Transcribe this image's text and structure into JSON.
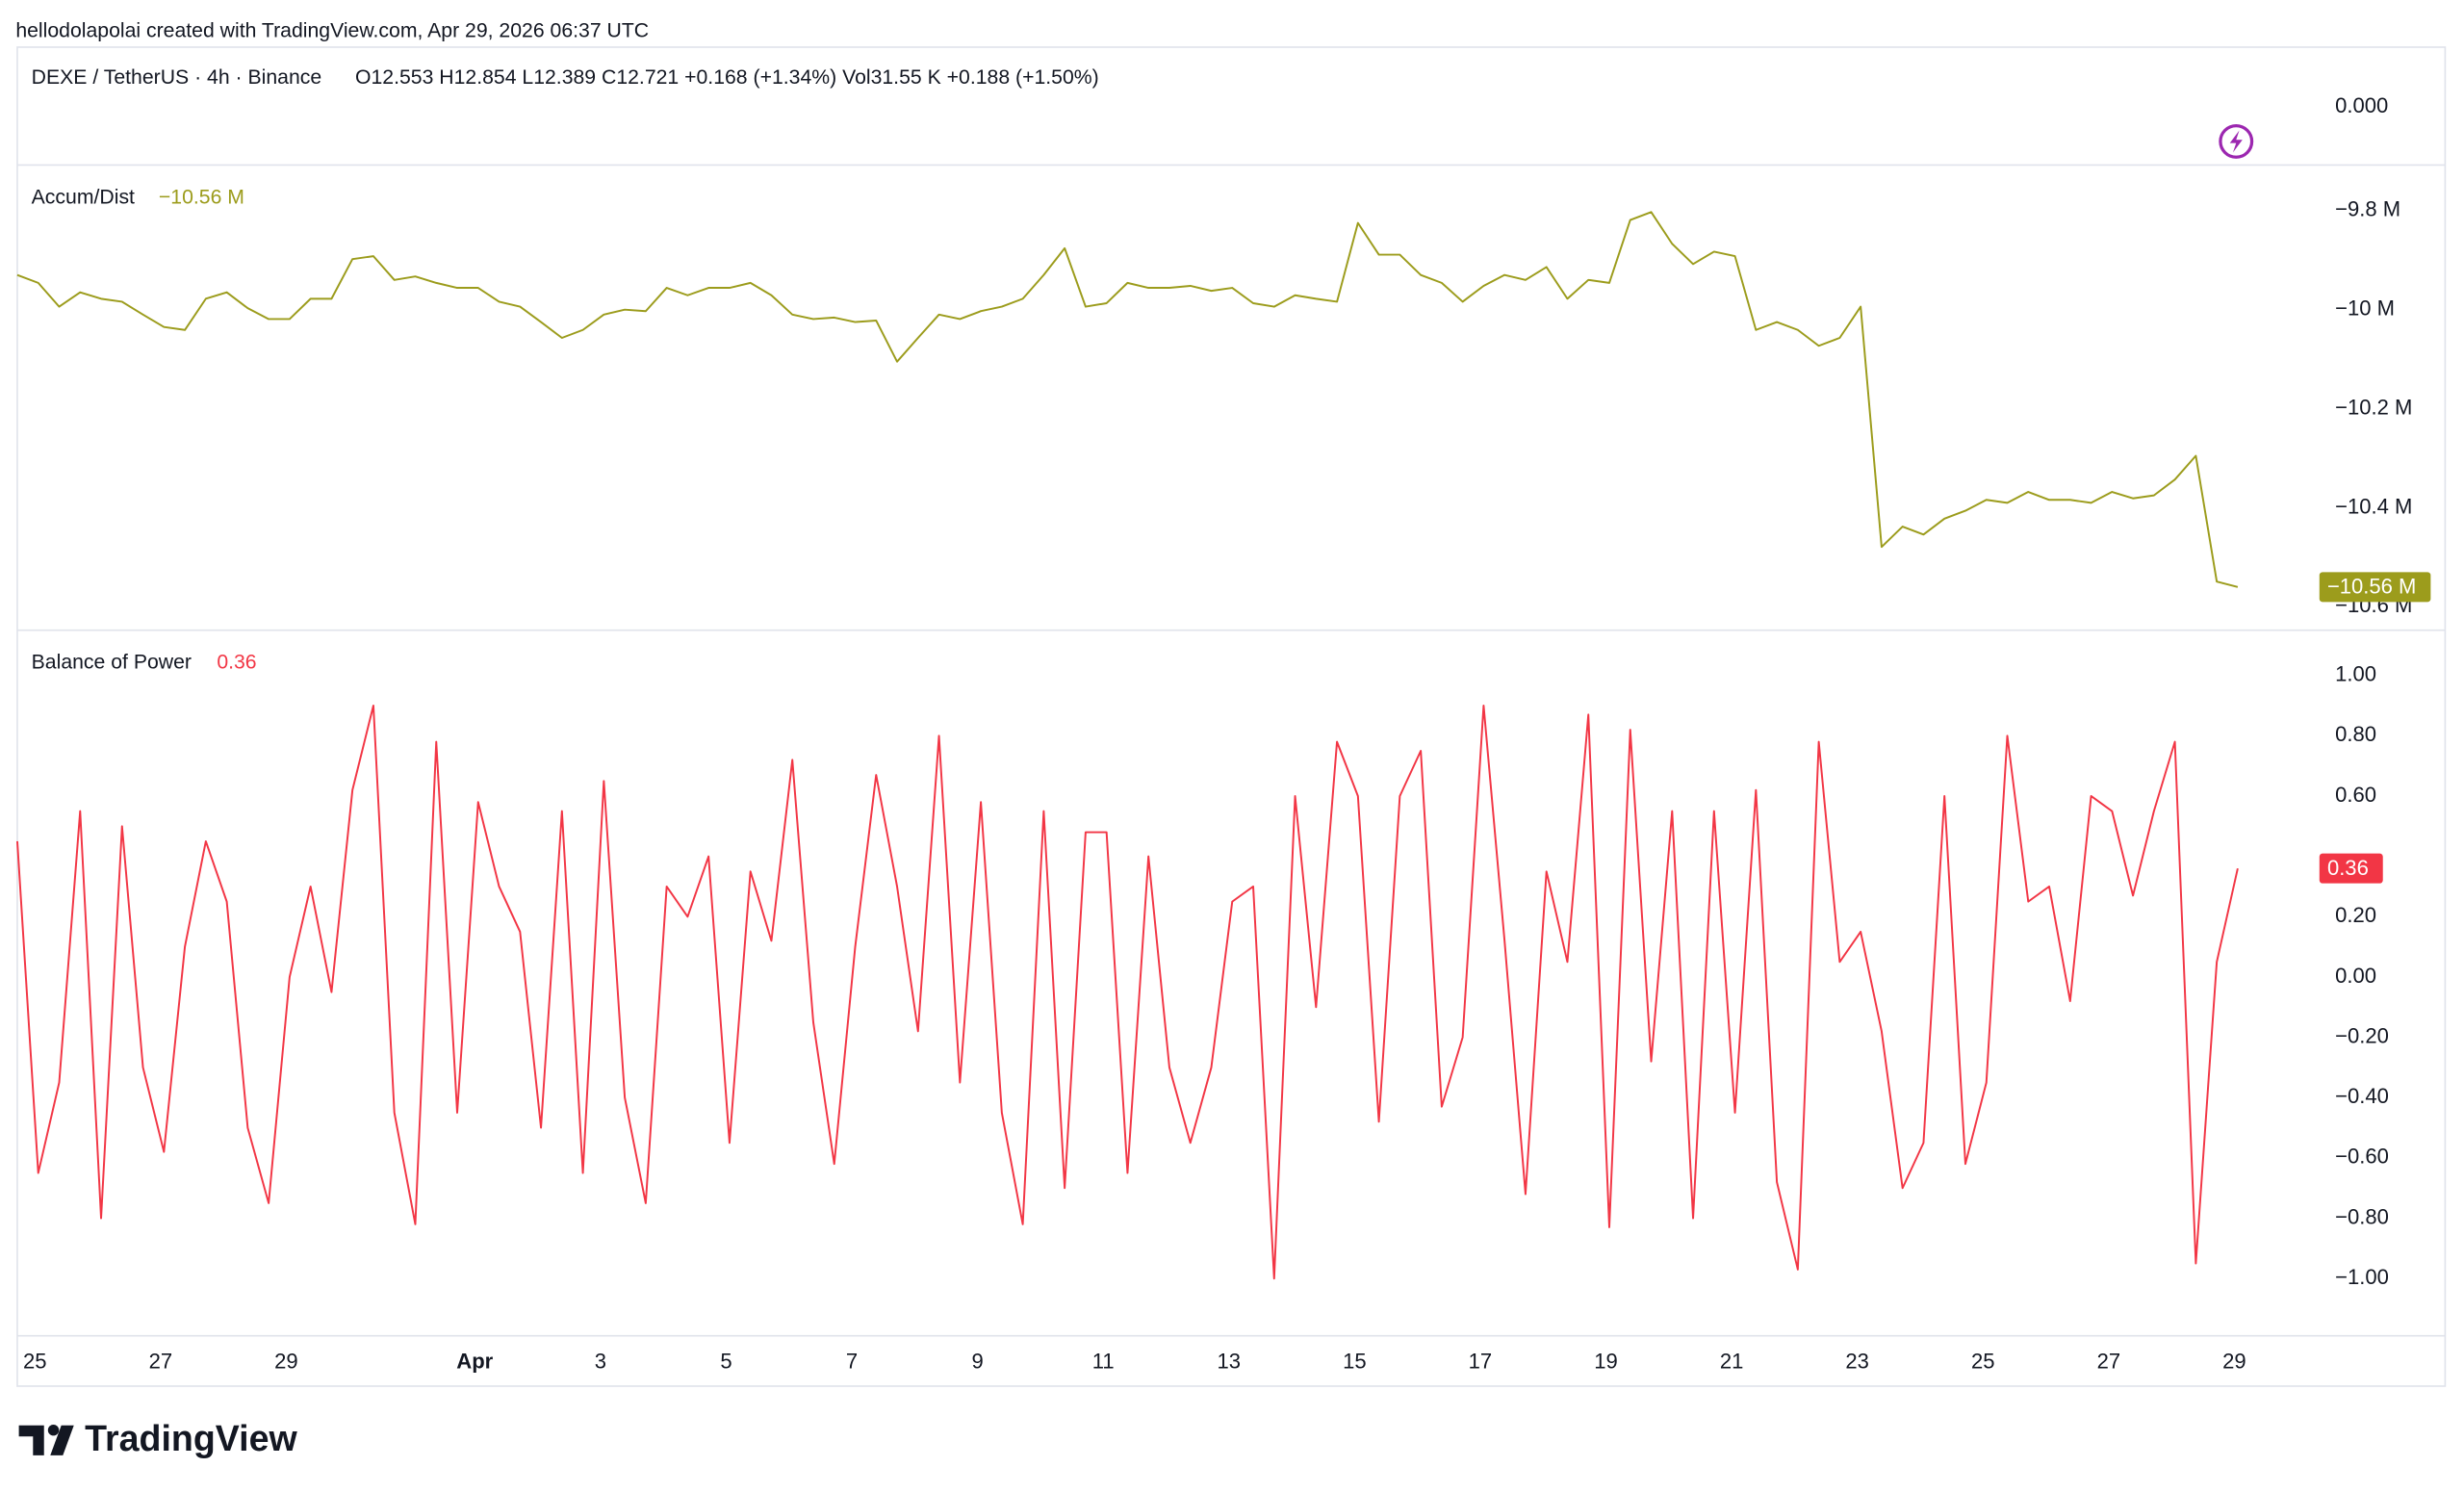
{
  "header": {
    "credit": "hellodolapolai created with TradingView.com, Apr 29, 2026 06:37 UTC",
    "brand": "TradingView"
  },
  "price_pane": {
    "symbol": "DEXE / TetherUS · 4h · Binance",
    "ohlc": "O12.553  H12.854  L12.389  C12.721  +0.168 (+1.34%)  Vol31.55 K  +0.188 (+1.50%)",
    "axis_label": "0.000"
  },
  "chart_data": [
    {
      "type": "line",
      "title": "Accum/Dist",
      "last_label": "−10.56 M",
      "color": "#9c9c1c",
      "xlim": [
        0,
        108.7
      ],
      "ylim": [
        -10644000,
        -9708000
      ],
      "yticks": [
        {
          "value": -9800000,
          "label": "−9.8 M"
        },
        {
          "value": -10000000,
          "label": "−10 M"
        },
        {
          "value": -10200000,
          "label": "−10.2 M"
        },
        {
          "value": -10400000,
          "label": "−10.4 M"
        },
        {
          "value": -10600000,
          "label": "−10.6 M"
        }
      ],
      "values": [
        -9930000,
        -9946000,
        -9994000,
        -9965000,
        -9978000,
        -9984000,
        -10010000,
        -10035000,
        -10041000,
        -9978000,
        -9965000,
        -9997000,
        -10019000,
        -10019000,
        -9978000,
        -9978000,
        -9898000,
        -9892000,
        -9940000,
        -9933000,
        -9946000,
        -9956000,
        -9956000,
        -9984000,
        -9994000,
        -10025000,
        -10057000,
        -10041000,
        -10010000,
        -10000000,
        -10003000,
        -9956000,
        -9971000,
        -9956000,
        -9956000,
        -9946000,
        -9971000,
        -10010000,
        -10019000,
        -10016000,
        -10025000,
        -10022000,
        -10105000,
        -10057000,
        -10010000,
        -10019000,
        -10003000,
        -9994000,
        -9978000,
        -9930000,
        -9876000,
        -9994000,
        -9987000,
        -9946000,
        -9956000,
        -9956000,
        -9952000,
        -9962000,
        -9956000,
        -9987000,
        -9994000,
        -9971000,
        -9978000,
        -9984000,
        -9825000,
        -9889000,
        -9889000,
        -9930000,
        -9946000,
        -9984000,
        -9952000,
        -9930000,
        -9940000,
        -9914000,
        -9978000,
        -9940000,
        -9946000,
        -9819000,
        -9803000,
        -9867000,
        -9908000,
        -9883000,
        -9892000,
        -10041000,
        -10025000,
        -10041000,
        -10073000,
        -10057000,
        -9994000,
        -10479000,
        -10438000,
        -10454000,
        -10422000,
        -10406000,
        -10384000,
        -10390000,
        -10368000,
        -10384000,
        -10384000,
        -10390000,
        -10368000,
        -10381000,
        -10375000,
        -10343000,
        -10295000,
        -10549000,
        -10560000
      ]
    },
    {
      "type": "line",
      "title": "Balance of Power",
      "last_label": "0.36",
      "color": "#f23645",
      "xlim": [
        0,
        108.7
      ],
      "ylim": [
        -1.19,
        1.15
      ],
      "yticks": [
        {
          "value": 1,
          "label": "1.00"
        },
        {
          "value": 0.8,
          "label": "0.80"
        },
        {
          "value": 0.6,
          "label": "0.60"
        },
        {
          "value": 0.2,
          "label": "0.20"
        },
        {
          "value": 0,
          "label": "0.00"
        },
        {
          "value": -0.2,
          "label": "−0.20"
        },
        {
          "value": -0.4,
          "label": "−0.40"
        },
        {
          "value": -0.6,
          "label": "−0.60"
        },
        {
          "value": -0.8,
          "label": "−0.80"
        },
        {
          "value": -1,
          "label": "−1.00"
        }
      ],
      "xticks": [
        {
          "value": 0.84,
          "label": "25"
        },
        {
          "value": 6.84,
          "label": "27"
        },
        {
          "value": 12.84,
          "label": "29"
        },
        {
          "value": 21.84,
          "label": "Apr"
        },
        {
          "value": 27.84,
          "label": "3"
        },
        {
          "value": 33.84,
          "label": "5"
        },
        {
          "value": 39.84,
          "label": "7"
        },
        {
          "value": 45.84,
          "label": "9"
        },
        {
          "value": 51.84,
          "label": "11"
        },
        {
          "value": 57.84,
          "label": "13"
        },
        {
          "value": 63.84,
          "label": "15"
        },
        {
          "value": 69.84,
          "label": "17"
        },
        {
          "value": 75.84,
          "label": "19"
        },
        {
          "value": 81.84,
          "label": "21"
        },
        {
          "value": 87.84,
          "label": "23"
        },
        {
          "value": 93.84,
          "label": "25"
        },
        {
          "value": 99.84,
          "label": "27"
        },
        {
          "value": 105.84,
          "label": "29"
        }
      ],
      "values": [
        0.45,
        -0.65,
        -0.35,
        0.55,
        -0.8,
        0.5,
        -0.3,
        -0.58,
        0.1,
        0.45,
        0.25,
        -0.5,
        -0.75,
        0,
        0.3,
        -0.05,
        0.62,
        0.9,
        -0.45,
        -0.82,
        0.78,
        -0.45,
        0.58,
        0.3,
        0.15,
        -0.5,
        0.55,
        -0.65,
        0.65,
        -0.4,
        -0.75,
        0.3,
        0.2,
        0.4,
        -0.55,
        0.35,
        0.12,
        0.72,
        -0.15,
        -0.62,
        0.1,
        0.67,
        0.3,
        -0.18,
        0.8,
        -0.35,
        0.58,
        -0.45,
        -0.82,
        0.55,
        -0.7,
        0.48,
        0.48,
        -0.65,
        0.4,
        -0.3,
        -0.55,
        -0.3,
        0.25,
        0.3,
        -1,
        0.6,
        -0.1,
        0.78,
        0.6,
        -0.48,
        0.6,
        0.75,
        -0.43,
        -0.2,
        0.9,
        0.12,
        -0.72,
        0.35,
        0.05,
        0.87,
        -0.83,
        0.82,
        -0.28,
        0.55,
        -0.8,
        0.55,
        -0.45,
        0.62,
        -0.68,
        -0.97,
        0.78,
        0.05,
        0.15,
        -0.18,
        -0.7,
        -0.55,
        0.6,
        -0.62,
        -0.35,
        0.8,
        0.25,
        0.3,
        -0.08,
        0.6,
        0.55,
        0.27,
        0.55,
        0.78,
        -0.95,
        0.05,
        0.36
      ]
    }
  ]
}
